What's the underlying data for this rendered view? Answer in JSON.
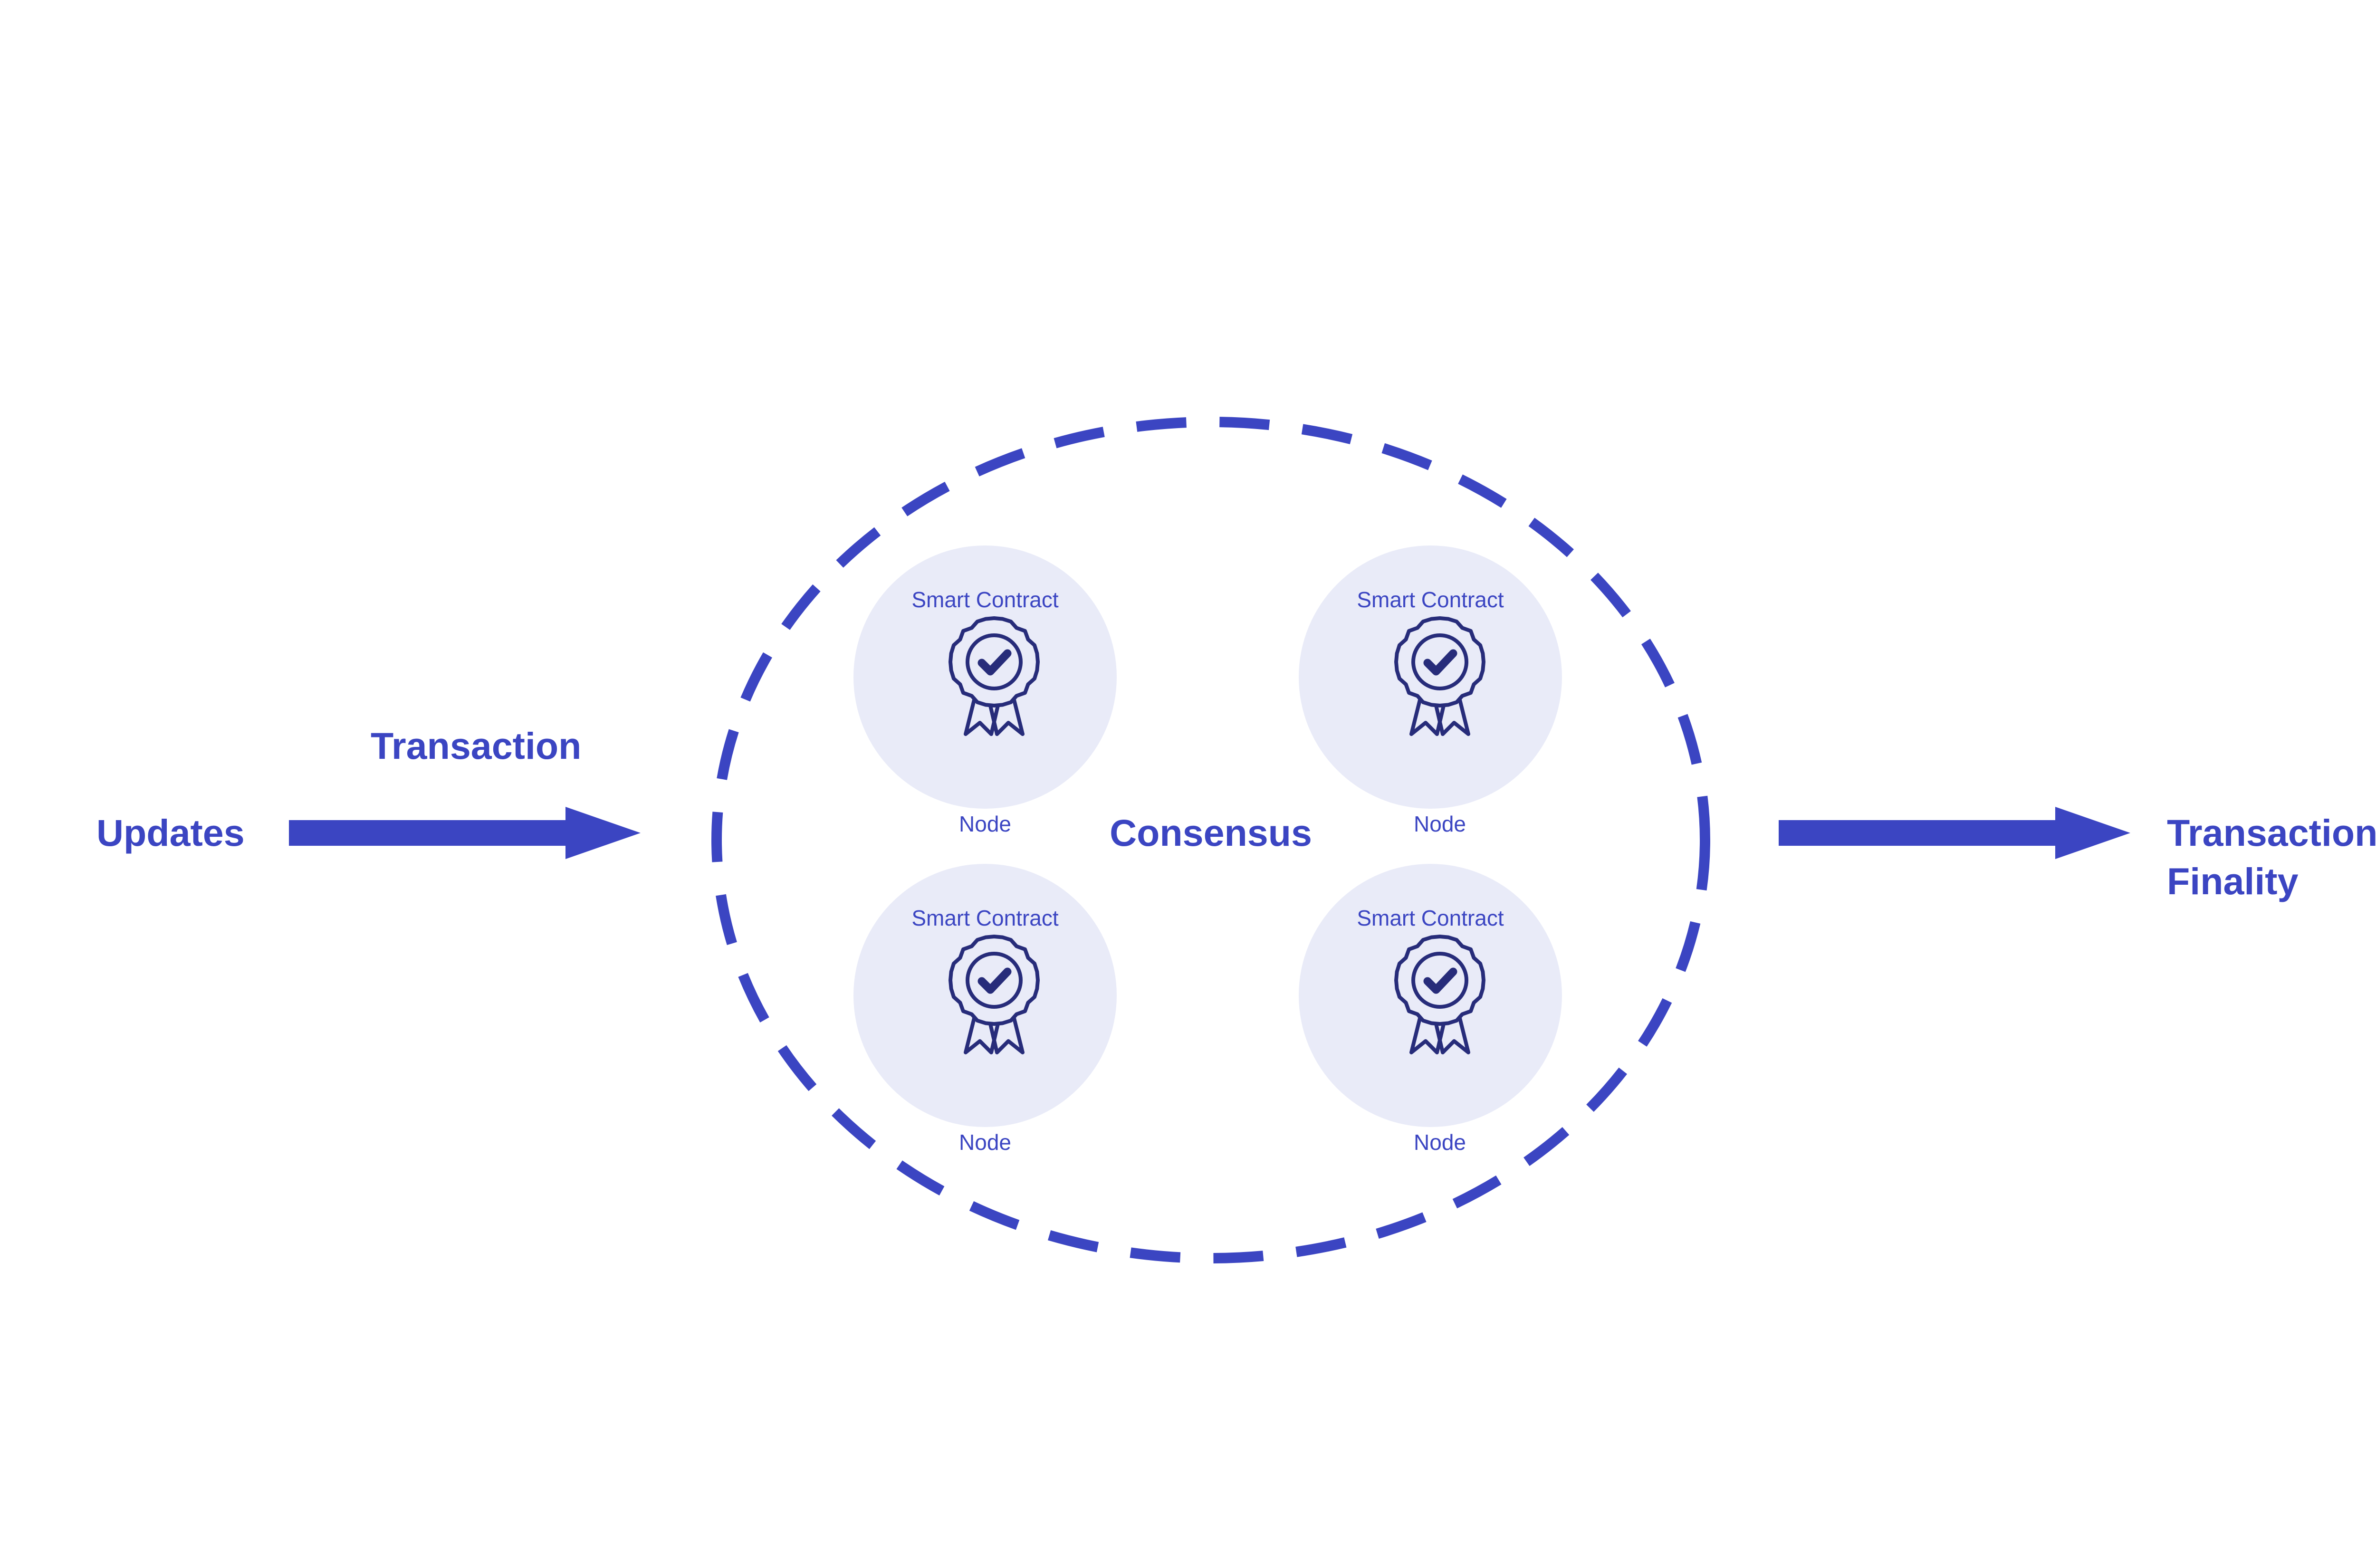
{
  "colors": {
    "primary": "#3b45c2",
    "node_fill": "#e9ebf8",
    "icon_stroke": "#272c7a",
    "background": "#ffffff"
  },
  "labels": {
    "updates": "Updates",
    "transaction": "Transaction",
    "consensus": "Consensus",
    "finality_line1": "Transaction",
    "finality_line2": "Finality"
  },
  "nodes": [
    {
      "contract_label": "Smart Contract",
      "node_label": "Node",
      "icon": "award-ribbon-check-icon"
    },
    {
      "contract_label": "Smart Contract",
      "node_label": "Node",
      "icon": "award-ribbon-check-icon"
    },
    {
      "contract_label": "Smart Contract",
      "node_label": "Node",
      "icon": "award-ribbon-check-icon"
    },
    {
      "contract_label": "Smart Contract",
      "node_label": "Node",
      "icon": "award-ribbon-check-icon"
    }
  ]
}
